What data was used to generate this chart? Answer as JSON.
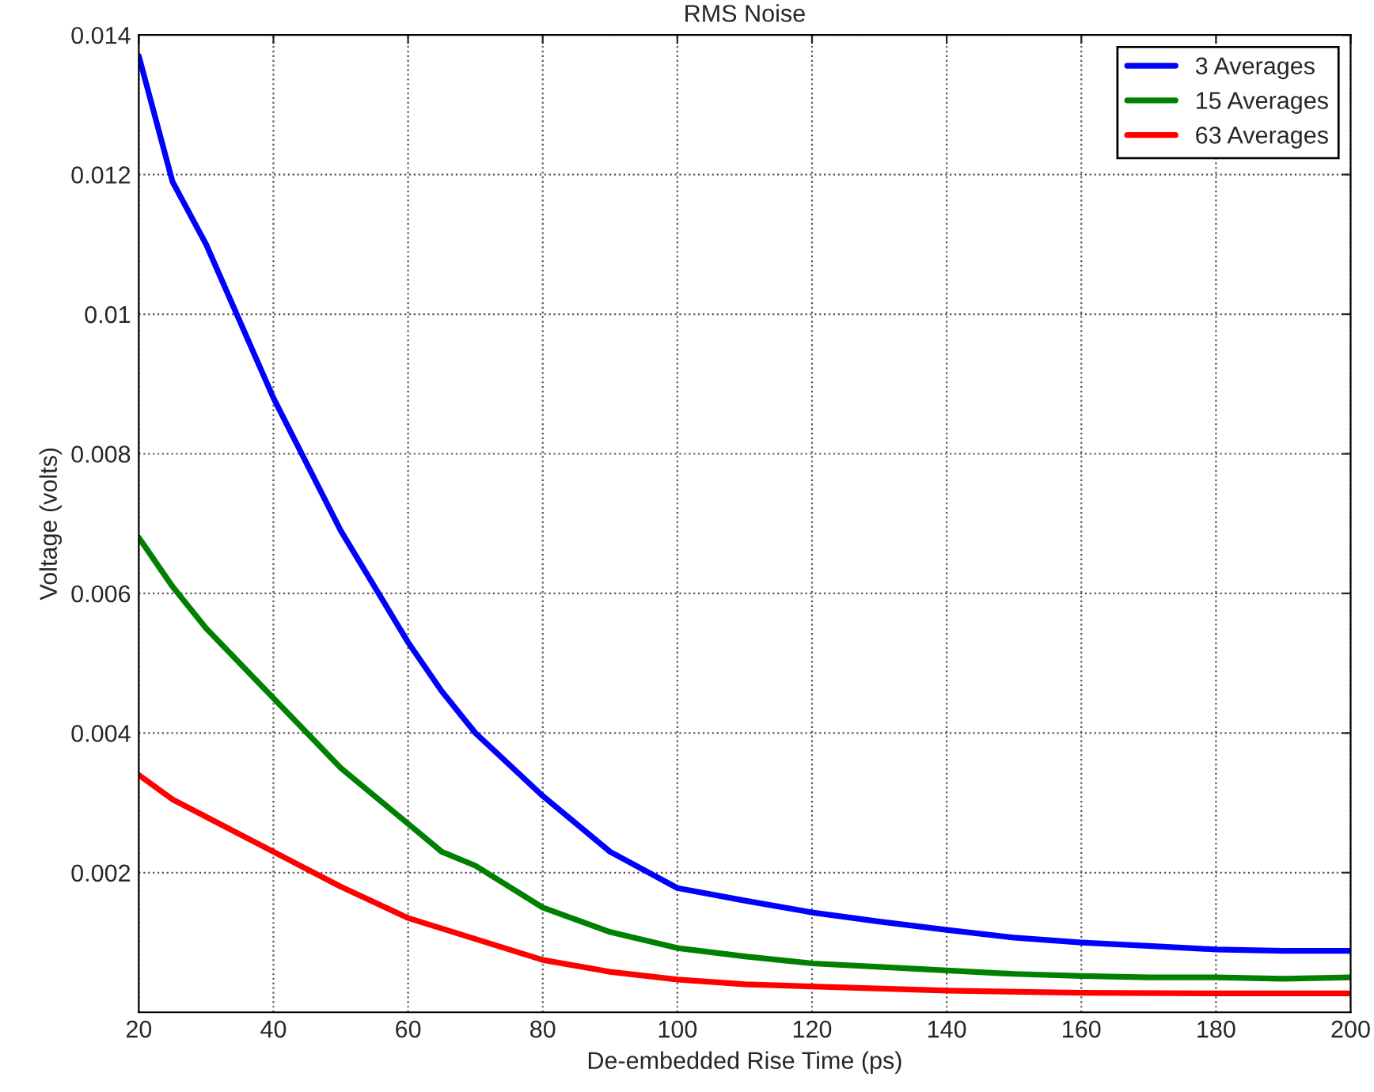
{
  "chart_data": {
    "type": "line",
    "title": "RMS Noise",
    "xlabel": "De-embedded Rise Time (ps)",
    "ylabel": "Voltage (volts)",
    "xlim": [
      20,
      200
    ],
    "xticks": [
      20,
      40,
      60,
      80,
      100,
      120,
      140,
      160,
      180,
      200
    ],
    "ylim": [
      0,
      0.014
    ],
    "yticks": [
      0.002,
      0.004,
      0.006,
      0.008,
      0.01,
      0.012,
      0.014
    ],
    "grid": true,
    "legend": "top right",
    "marker": "none",
    "line_style": "solid",
    "series": [
      {
        "name": "3 Averages",
        "color": "#0000ff",
        "x": [
          20,
          25,
          30,
          40,
          50,
          60,
          65,
          70,
          80,
          90,
          100,
          110,
          120,
          130,
          140,
          150,
          160,
          170,
          180,
          190,
          200
        ],
        "values": [
          0.0137,
          0.0119,
          0.011,
          0.0088,
          0.0069,
          0.0053,
          0.0046,
          0.004,
          0.0031,
          0.0023,
          0.00178,
          0.0016,
          0.00143,
          0.0013,
          0.00118,
          0.00107,
          0.001,
          0.00095,
          0.0009,
          0.00088,
          0.00088
        ]
      },
      {
        "name": "15 Averages",
        "color": "#008000",
        "x": [
          20,
          25,
          30,
          40,
          50,
          60,
          65,
          70,
          80,
          90,
          100,
          110,
          120,
          130,
          140,
          150,
          160,
          170,
          180,
          190,
          200
        ],
        "values": [
          0.0068,
          0.0061,
          0.0055,
          0.0045,
          0.0035,
          0.0027,
          0.0023,
          0.0021,
          0.0015,
          0.00115,
          0.00092,
          0.0008,
          0.0007,
          0.00065,
          0.0006,
          0.00055,
          0.00052,
          0.0005,
          0.0005,
          0.00048,
          0.0005
        ]
      },
      {
        "name": "63 Averages",
        "color": "#ff0000",
        "x": [
          20,
          25,
          30,
          40,
          50,
          60,
          70,
          80,
          90,
          100,
          110,
          120,
          140,
          160,
          180,
          200
        ],
        "values": [
          0.0034,
          0.00305,
          0.0028,
          0.0023,
          0.0018,
          0.00135,
          0.00105,
          0.00075,
          0.00058,
          0.00047,
          0.0004,
          0.00037,
          0.00031,
          0.00028,
          0.00027,
          0.00027
        ]
      }
    ]
  }
}
